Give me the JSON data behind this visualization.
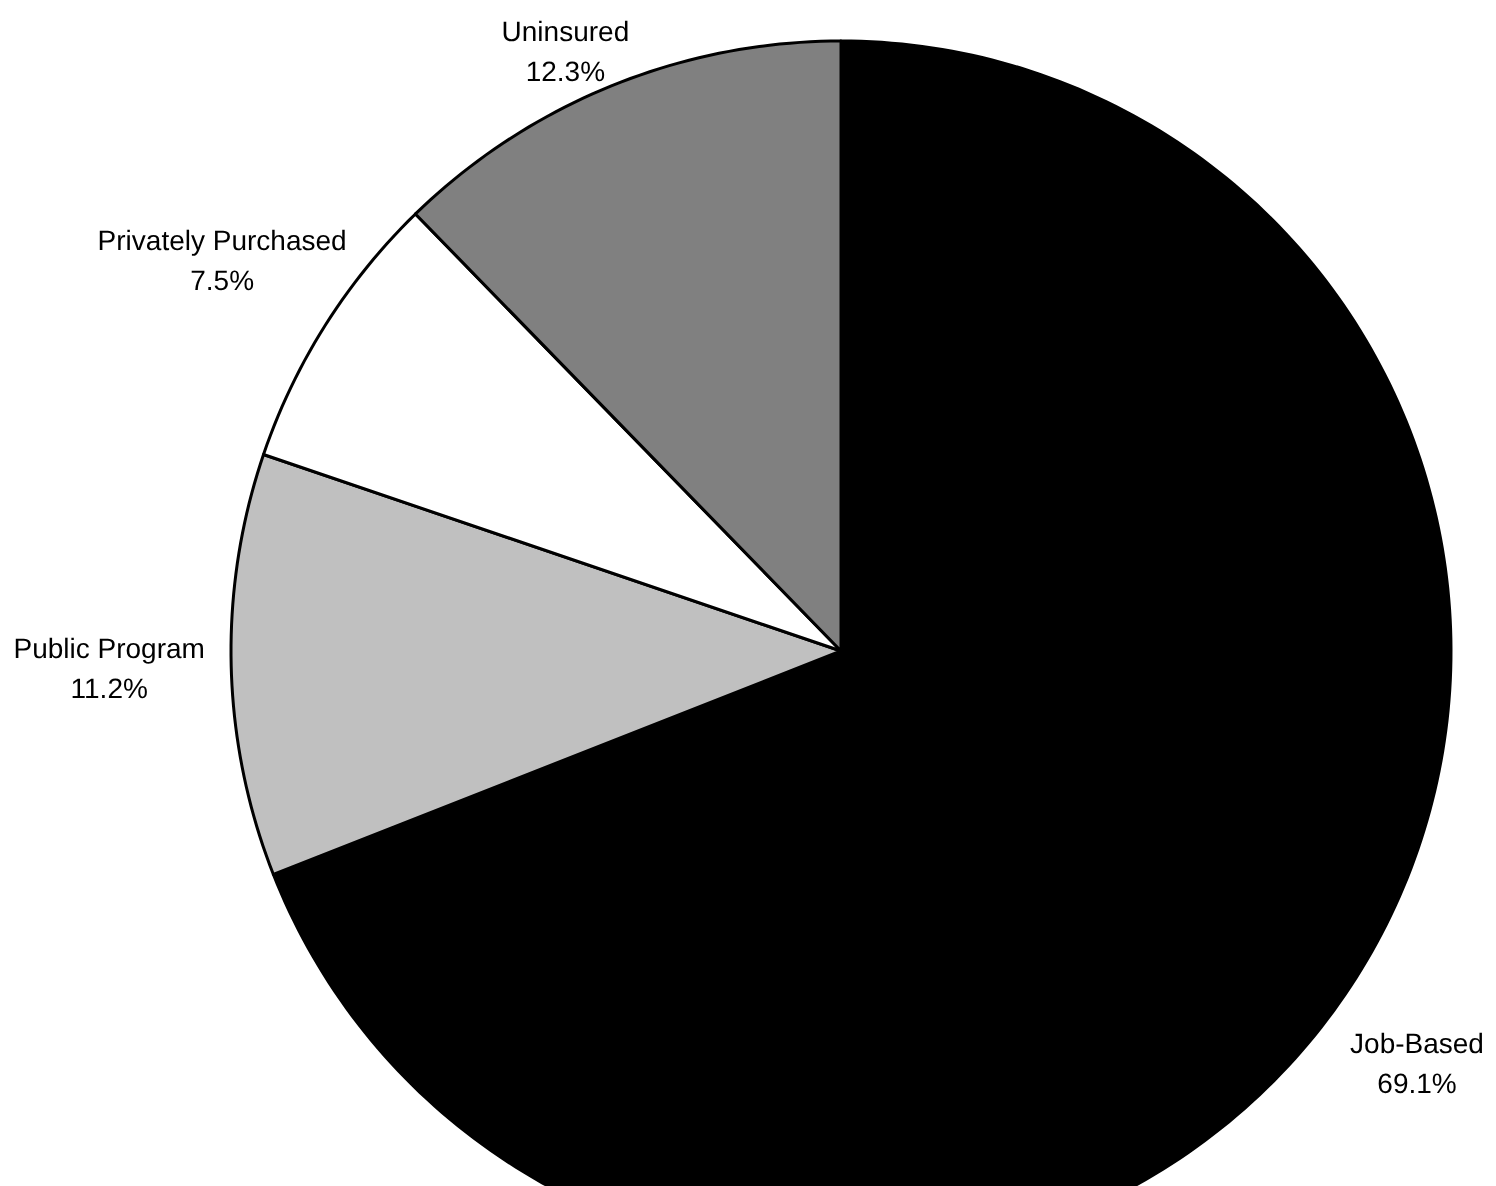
{
  "chart_data": {
    "type": "pie",
    "categories": [
      "Job-Based",
      "Public Program",
      "Privately Purchased",
      "Uninsured"
    ],
    "values": [
      69.1,
      11.2,
      7.5,
      12.3
    ],
    "colors": [
      "#000000",
      "#c0c0c0",
      "#ffffff",
      "#808080"
    ],
    "value_labels": [
      "69.1%",
      "11.2%",
      "7.5%",
      "12.3%"
    ]
  }
}
